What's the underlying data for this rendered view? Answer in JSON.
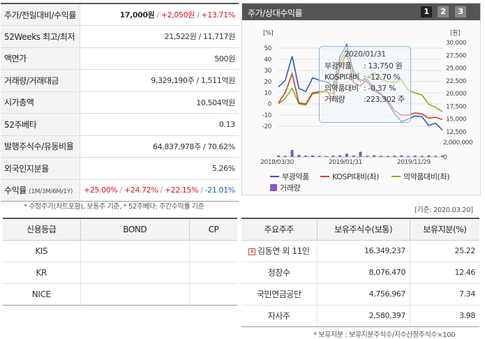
{
  "stats": {
    "price_label": "주가/전일대비/수익률",
    "price_value": "17,000원",
    "price_change": "+2,050원",
    "price_return": "+13.71%",
    "rows": [
      {
        "label": "52Weeks 최고/최저",
        "value": "21,522원 / 11,717원"
      },
      {
        "label": "액면가",
        "value": "500원"
      },
      {
        "label": "거래량/거래대금",
        "value": "9,329,190주 / 1,511억원"
      },
      {
        "label": "시가총액",
        "value": "10,504억원"
      },
      {
        "label": "52주베타",
        "value": "0.13"
      },
      {
        "label": "발행주식수/유동비율",
        "value": "64,837,978주 / 70.62%"
      },
      {
        "label": "외국인지분율",
        "value": "5.26%"
      }
    ],
    "return_label": "수익률",
    "return_sub": "(1M/3M/6M/1Y)",
    "returns": [
      "+25.00%",
      "+24.72%",
      "+22.15%",
      "-21.01%"
    ]
  },
  "stats_note": "* 수정주가(차트포함), 보통주 기준, * 52주베타: 주간수익률 기준",
  "chart_panel": {
    "title": "주가/상대수익률",
    "pages": [
      "1",
      "2",
      "3"
    ],
    "active_page": 0,
    "left_unit": "[%]",
    "right_unit": "[원]",
    "left_ticks": [
      "50",
      "40",
      "30",
      "20",
      "10",
      "0",
      "-10",
      "-20"
    ],
    "right_ticks": [
      "30,000",
      "27,500",
      "25,000",
      "22,500",
      "20,000",
      "17,500",
      "15,000",
      "12,500"
    ],
    "volume_ticks": [
      "2,000,000",
      "0"
    ],
    "x_ticks": [
      "2018/03/30",
      "2019/01/31",
      "2019/11/29"
    ],
    "tooltip": {
      "date": "2020/01/31",
      "rows": [
        {
          "label": "부광약품",
          "value": ": 13,750 원"
        },
        {
          "label": "KOSPI대비",
          "value": ": -12.70 %"
        },
        {
          "label": "의약품대비",
          "value": ": -0.37 %"
        },
        {
          "label": "거래량",
          "value": ":223,302 주"
        }
      ]
    },
    "legend": {
      "stock": "부광약품",
      "kospi": "KOSPI대비(좌)",
      "pharma": "의약품대비(좌)",
      "volume": "거래량"
    }
  },
  "colors": {
    "stock": "#2a5cc4",
    "kospi": "#c8422b",
    "pharma": "#7cb517",
    "volume": "#8a55c6",
    "accent_red": "#d8161f",
    "accent_blue": "#1f5fbf"
  },
  "chart_data": {
    "type": "line",
    "x": [
      "2018/03",
      "2018/04",
      "2018/05",
      "2018/06",
      "2018/07",
      "2018/08",
      "2018/09",
      "2018/10",
      "2018/11",
      "2018/12",
      "2019/01",
      "2019/02",
      "2019/03",
      "2019/04",
      "2019/05",
      "2019/06",
      "2019/07",
      "2019/08",
      "2019/09",
      "2019/10",
      "2019/11",
      "2019/12",
      "2020/01",
      "2020/02",
      "2020/03"
    ],
    "series": [
      {
        "name": "부광약품",
        "axis": "right",
        "values": [
          21300,
          22600,
          27300,
          21000,
          20400,
          23100,
          22600,
          22300,
          21500,
          27200,
          29600,
          23800,
          22700,
          22300,
          20600,
          19800,
          18200,
          16000,
          14500,
          15000,
          15600,
          15500,
          13750,
          14200,
          12800
        ]
      },
      {
        "name": "KOSPI대비(좌)",
        "axis": "left",
        "values": [
          1,
          10,
          27,
          1,
          0,
          10,
          11,
          12,
          4,
          34,
          45,
          19,
          16,
          22,
          14,
          9,
          3,
          -6,
          -10,
          -10,
          -8,
          -9,
          -12.7,
          -12,
          -14
        ]
      },
      {
        "name": "의약품대비(좌)",
        "axis": "left",
        "values": [
          0,
          5,
          14,
          0,
          -1,
          9,
          10,
          11,
          9,
          38,
          49,
          30,
          20,
          24,
          28,
          22,
          20,
          19,
          22,
          12,
          10,
          8,
          -0.37,
          -3,
          -7
        ]
      },
      {
        "name": "거래량",
        "axis": "volume",
        "values": [
          200000,
          150000,
          950000,
          280000,
          180000,
          200000,
          150000,
          130000,
          180000,
          220000,
          450000,
          180000,
          700000,
          160000,
          240000,
          150000,
          140000,
          170000,
          200000,
          130000,
          180000,
          160000,
          223302,
          160000,
          190000
        ]
      }
    ],
    "x_tick_labels": [
      "2018/03/30",
      "2019/01/31",
      "2019/11/29"
    ],
    "ylim_left": [
      -25,
      55
    ],
    "ylim_right": [
      12500,
      30000
    ],
    "ylim_volume": [
      0,
      2000000
    ],
    "ylabel_left": "[%]",
    "ylabel_right": "[원]",
    "legend_position": "bottom",
    "grid": true
  },
  "credit": {
    "headers": [
      "신용등급",
      "BOND",
      "CP"
    ],
    "rows": [
      {
        "agency": "KIS",
        "bond": "",
        "cp": ""
      },
      {
        "agency": "KR",
        "bond": "",
        "cp": ""
      },
      {
        "agency": "NICE",
        "bond": "",
        "cp": ""
      }
    ]
  },
  "holders": {
    "date_note": "[기준: 2020.03.20]",
    "headers": [
      "주요주주",
      "보유주식수(보통)",
      "보유지분(%)"
    ],
    "rows": [
      {
        "name": "김동연 외 11인",
        "shares": "16,349,237",
        "pct": "25.22"
      },
      {
        "name": "정창수",
        "shares": "8,076,470",
        "pct": "12.46"
      },
      {
        "name": "국민연금공단",
        "shares": "4,756,967",
        "pct": "7.34"
      },
      {
        "name": "자사주",
        "shares": "2,580,397",
        "pct": "3.98"
      }
    ],
    "footnote": "* 보유지분 : 보유지분주식수/지수산정주식수×100"
  }
}
